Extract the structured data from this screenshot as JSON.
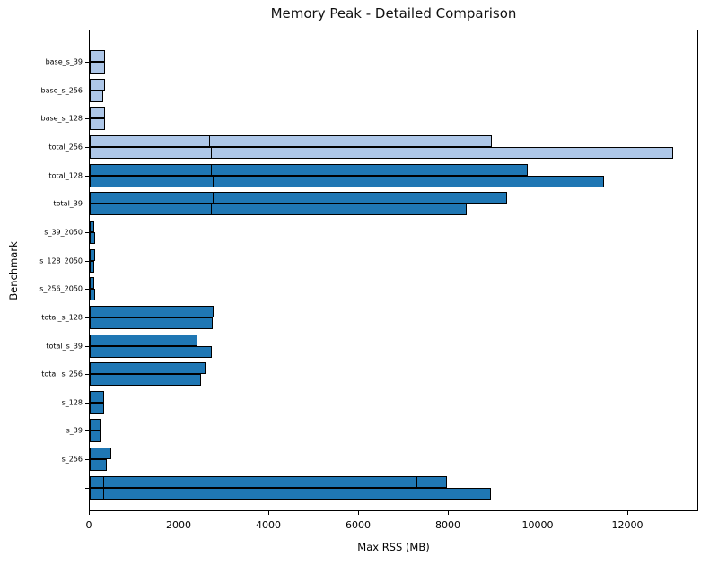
{
  "chart_data": {
    "type": "bar",
    "orientation": "horizontal",
    "title": "Memory Peak - Detailed Comparison",
    "xlabel": "Max RSS (MB)",
    "ylabel": "Benchmark",
    "xlim": [
      0,
      13580
    ],
    "xticks": [
      0,
      2000,
      4000,
      6000,
      8000,
      10000,
      12000
    ],
    "grid": false,
    "legend": "none",
    "bars_per_category": 2,
    "units": "MB",
    "colors": {
      "light_bar": "#aec7e8",
      "dark_bar": "#1f77b4",
      "edge": "#000000",
      "background": "#ffffff",
      "text": "#000000"
    },
    "categories": [
      {
        "label": "base_s_39",
        "shade": "light",
        "bars": [
          {
            "value": 330,
            "marks": []
          },
          {
            "value": 330,
            "marks": []
          }
        ]
      },
      {
        "label": "base_s_256",
        "shade": "light",
        "bars": [
          {
            "value": 345,
            "marks": []
          },
          {
            "value": 290,
            "marks": []
          }
        ]
      },
      {
        "label": "base_s_128",
        "shade": "light",
        "bars": [
          {
            "value": 330,
            "marks": []
          },
          {
            "value": 345,
            "marks": []
          }
        ]
      },
      {
        "label": "total_256",
        "shade": "light",
        "bars": [
          {
            "value": 8950,
            "marks": [
              2660
            ]
          },
          {
            "value": 13000,
            "marks": [
              2700
            ]
          }
        ]
      },
      {
        "label": "total_128",
        "shade": "dark",
        "bars": [
          {
            "value": 9750,
            "marks": [
              2700
            ]
          },
          {
            "value": 11450,
            "marks": [
              2740
            ]
          }
        ]
      },
      {
        "label": "total_39",
        "shade": "dark",
        "bars": [
          {
            "value": 9300,
            "marks": [
              2740
            ]
          },
          {
            "value": 8400,
            "marks": [
              2700
            ]
          }
        ]
      },
      {
        "label": "s_39_2050",
        "shade": "dark",
        "bars": [
          {
            "value": 90,
            "marks": []
          },
          {
            "value": 115,
            "marks": []
          }
        ]
      },
      {
        "label": "s_128_2050",
        "shade": "dark",
        "bars": [
          {
            "value": 110,
            "marks": []
          },
          {
            "value": 95,
            "marks": []
          }
        ]
      },
      {
        "label": "s_256_2050",
        "shade": "dark",
        "bars": [
          {
            "value": 95,
            "marks": []
          },
          {
            "value": 115,
            "marks": []
          }
        ]
      },
      {
        "label": "total_s_128",
        "shade": "dark",
        "bars": [
          {
            "value": 2750,
            "marks": []
          },
          {
            "value": 2740,
            "marks": []
          }
        ]
      },
      {
        "label": "total_s_39",
        "shade": "dark",
        "bars": [
          {
            "value": 2400,
            "marks": []
          },
          {
            "value": 2720,
            "marks": []
          }
        ]
      },
      {
        "label": "total_s_256",
        "shade": "dark",
        "bars": [
          {
            "value": 2580,
            "marks": []
          },
          {
            "value": 2480,
            "marks": []
          }
        ]
      },
      {
        "label": "s_128",
        "shade": "dark",
        "bars": [
          {
            "value": 310,
            "marks": [
              230
            ]
          },
          {
            "value": 310,
            "marks": [
              230
            ]
          }
        ]
      },
      {
        "label": "s_39",
        "shade": "dark",
        "bars": [
          {
            "value": 230,
            "marks": []
          },
          {
            "value": 230,
            "marks": []
          }
        ]
      },
      {
        "label": "s_256",
        "shade": "dark",
        "bars": [
          {
            "value": 470,
            "marks": [
              230
            ]
          },
          {
            "value": 380,
            "marks": [
              230
            ]
          }
        ]
      },
      {
        "label": "",
        "shade": "dark",
        "bars": [
          {
            "value": 7950,
            "marks": [
              290,
              7270
            ]
          },
          {
            "value": 8940,
            "marks": [
              290,
              7250
            ]
          }
        ]
      }
    ]
  }
}
